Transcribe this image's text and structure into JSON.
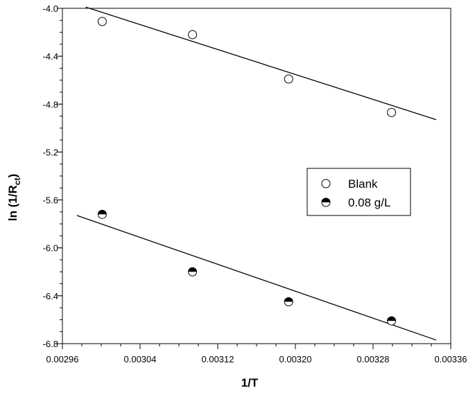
{
  "chart_data": {
    "type": "scatter",
    "xlabel": "1/T",
    "ylabel": {
      "main": "ln (1/R",
      "sub": "ct",
      "close": ")"
    },
    "xlim": [
      0.00296,
      0.00336
    ],
    "ylim": [
      -6.8,
      -4.0
    ],
    "x_ticks": [
      {
        "value": 0.00296,
        "label": "0.00296"
      },
      {
        "value": 0.00304,
        "label": "0.00304"
      },
      {
        "value": 0.00312,
        "label": "0.00312"
      },
      {
        "value": 0.0032,
        "label": "0.00320"
      },
      {
        "value": 0.00328,
        "label": "0.00328"
      },
      {
        "value": 0.00336,
        "label": "0.00336"
      }
    ],
    "y_ticks": [
      {
        "value": -4.0,
        "label": "-4.0"
      },
      {
        "value": -4.4,
        "label": "-4.4"
      },
      {
        "value": -4.8,
        "label": "-4.8"
      },
      {
        "value": -5.2,
        "label": "-5.2"
      },
      {
        "value": -5.6,
        "label": "-5.6"
      },
      {
        "value": -6.0,
        "label": "-6.0"
      },
      {
        "value": -6.4,
        "label": "-6.4"
      },
      {
        "value": -6.8,
        "label": "-6.8"
      }
    ],
    "x_minor_step": 2e-05,
    "y_minor_step": 0.1,
    "grid": false,
    "legend_position": "right-middle",
    "series": [
      {
        "name": "Blank",
        "marker": "open-circle",
        "x": [
          0.003001,
          0.003094,
          0.003193,
          0.003299
        ],
        "y": [
          -4.11,
          -4.22,
          -4.59,
          -4.87
        ],
        "fit_line": {
          "x": [
            0.002984,
            0.003345
          ],
          "y": [
            -3.99,
            -4.93
          ]
        }
      },
      {
        "name": "0.08 g/L",
        "marker": "half-filled-circle",
        "x": [
          0.003001,
          0.003094,
          0.003193,
          0.003299
        ],
        "y": [
          -5.72,
          -6.2,
          -6.45,
          -6.61
        ],
        "fit_line": {
          "x": [
            0.002975,
            0.003345
          ],
          "y": [
            -5.73,
            -6.77
          ]
        }
      }
    ]
  }
}
